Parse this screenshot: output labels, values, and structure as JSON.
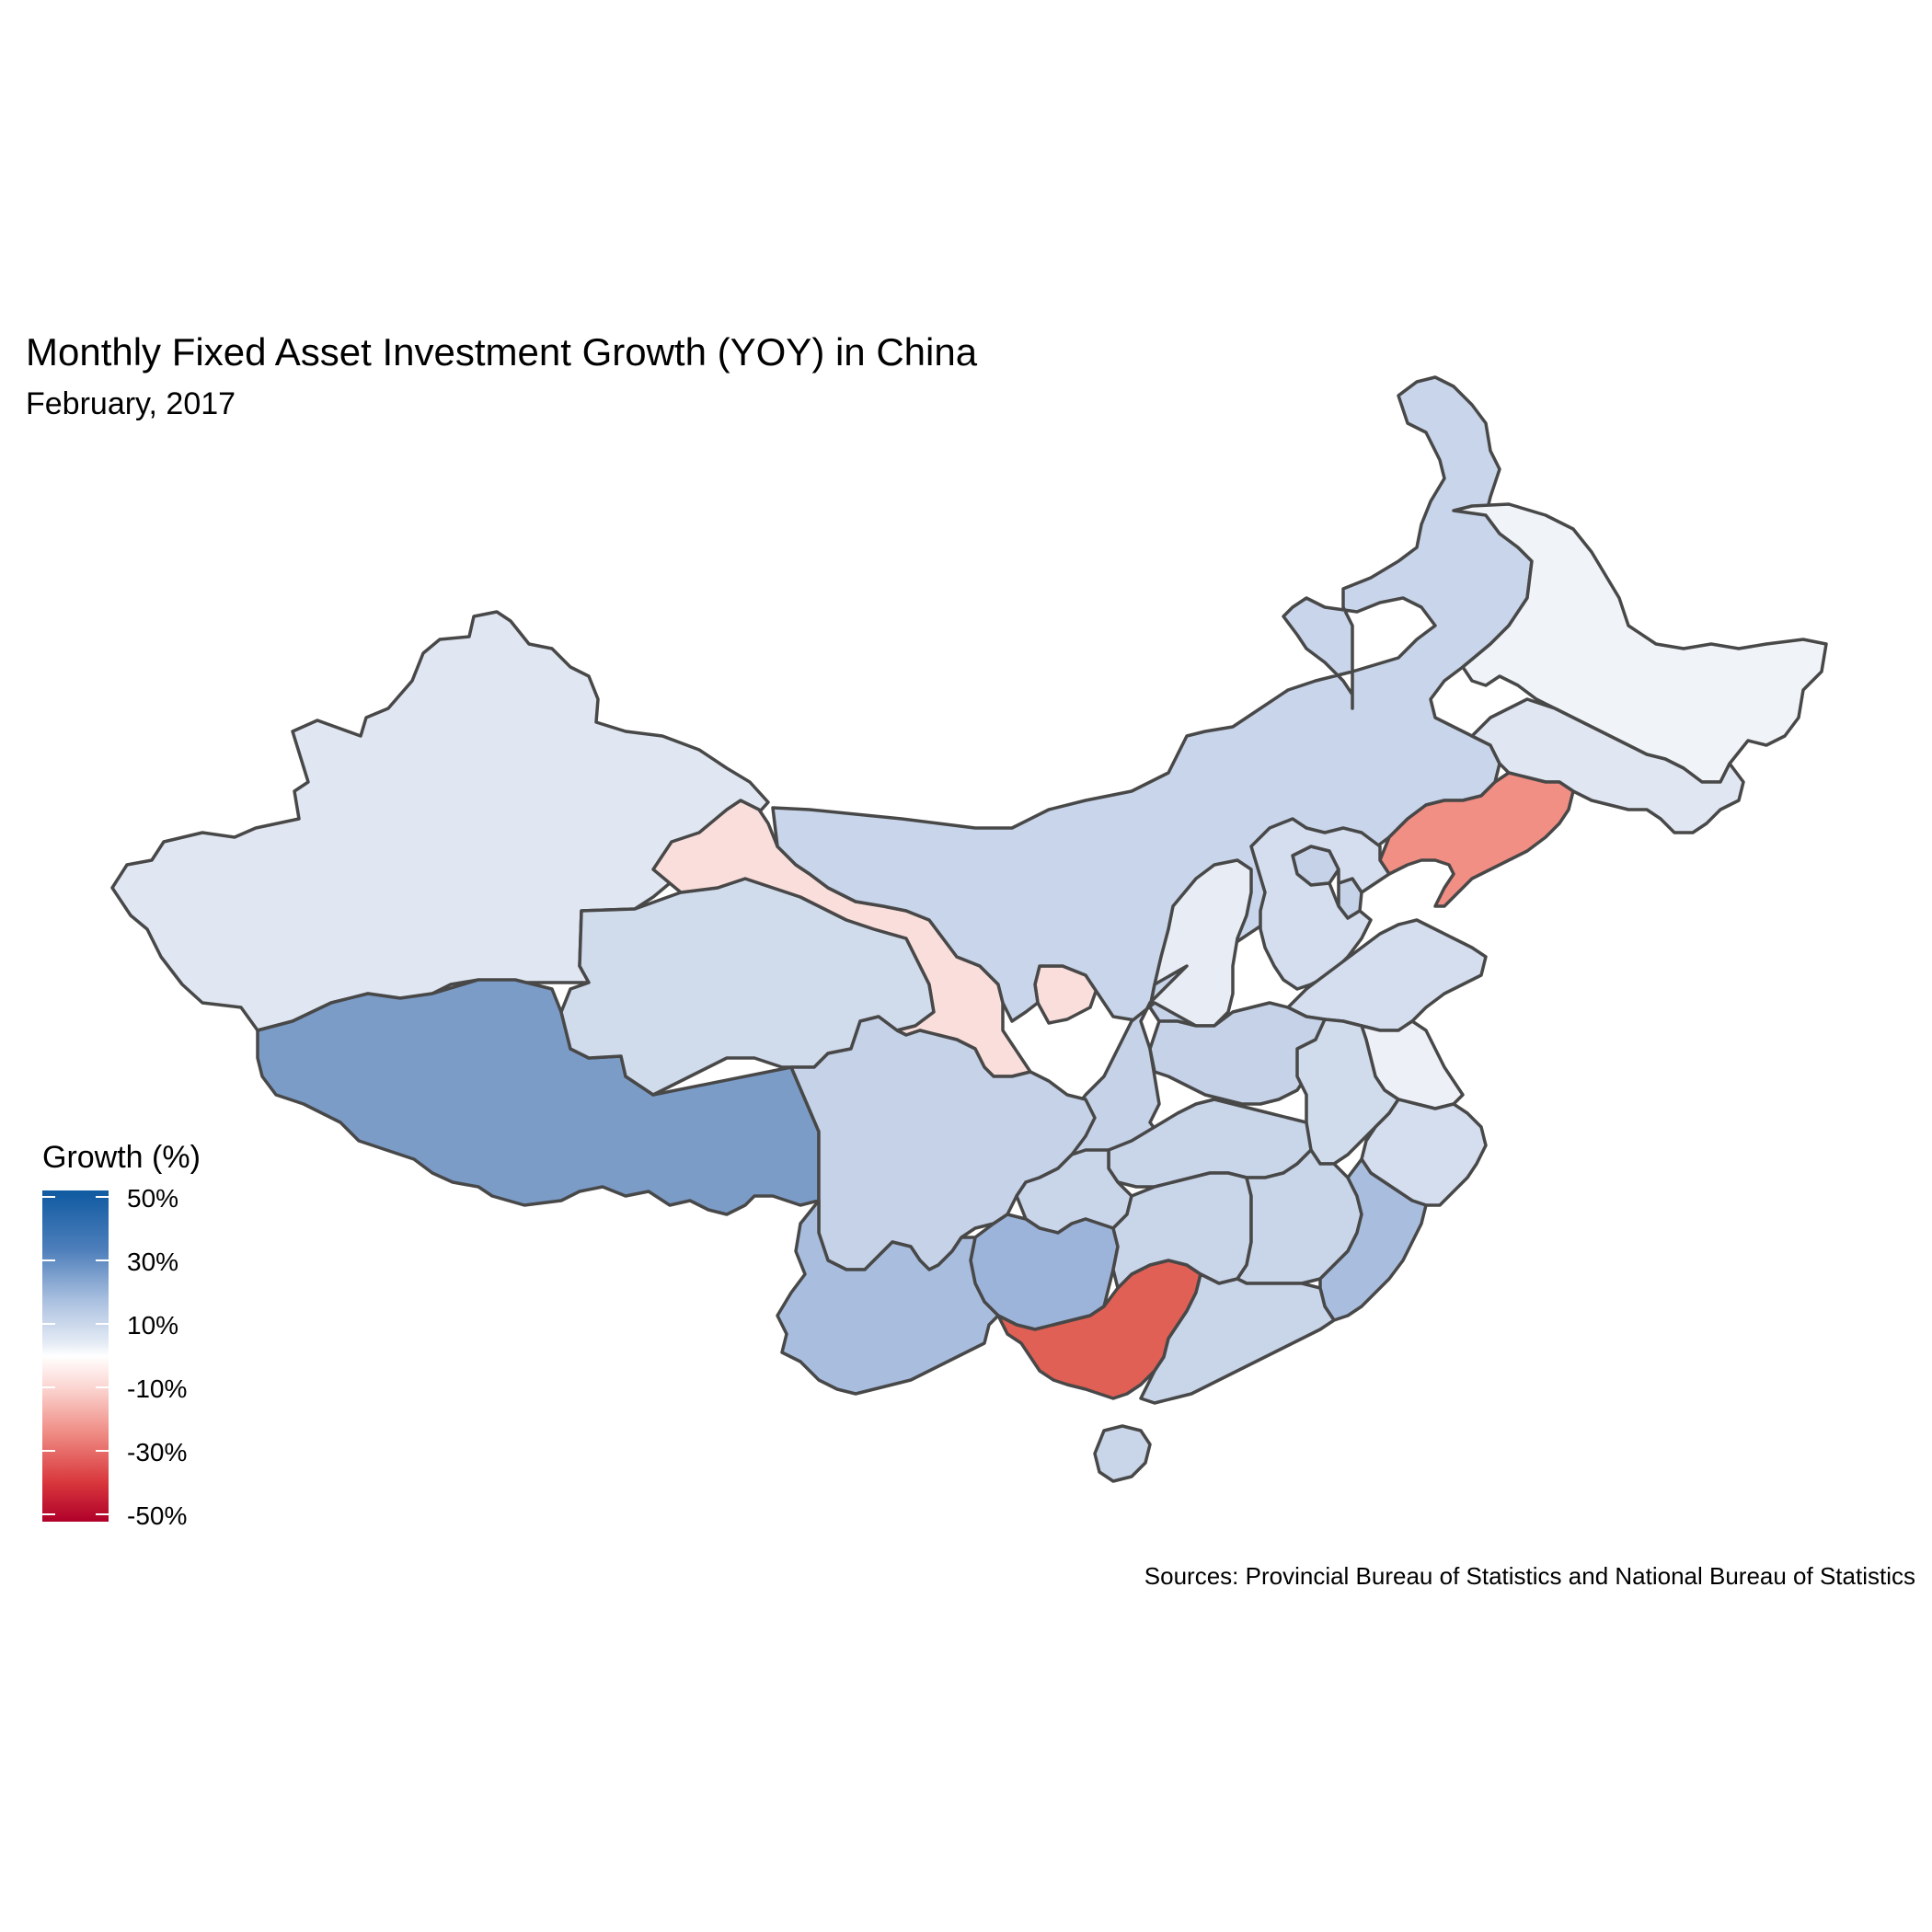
{
  "title": "Monthly Fixed Asset Investment Growth (YOY) in China",
  "subtitle": "February, 2017",
  "caption": "Sources: Provincial Bureau of Statistics and National Bureau of Statistics",
  "legend": {
    "title": "Growth (%)",
    "labels": [
      "50%",
      "30%",
      "10%",
      "-10%",
      "-30%",
      "-50%"
    ],
    "colors": {
      "high": "#0f5aa1",
      "mid": "#ffffff",
      "low": "#b0002a"
    }
  },
  "chart_data": {
    "type": "choropleth",
    "title": "Monthly Fixed Asset Investment Growth (YOY) in China",
    "subtitle": "February, 2017",
    "legend_title": "Growth (%)",
    "scale_range": [
      -50,
      50
    ],
    "legend_position": "left",
    "fill_colors": {
      "xinjiang": "#e1e7f2",
      "tibet": "#7c9cc8",
      "qinghai": "#d0dbec",
      "gansu": "#fadedc",
      "inner-mongolia": "#c8d5ea",
      "heilongjiang": "#f0f4f9",
      "jilin": "#e1e7f2",
      "liaoning": "#f28f84",
      "ningxia": "#fadedc",
      "shaanxi": "#c5d2e8",
      "shanxi": "#e8edf5",
      "hebei": "#d4deee",
      "shandong": "#d4deee",
      "henan": "#c5d2e8",
      "jiangsu": "#edf1f7",
      "anhui": "#d0dbec",
      "hubei": "#c9d5e9",
      "sichuan": "#c5d2e8",
      "chongqing": "#c9d5e9",
      "yunnan": "#a9bedf",
      "guizhou": "#9db4da",
      "guangxi": "#e06055",
      "guangdong": "#c9d5e9",
      "hunan": "#c9d5e9",
      "jiangxi": "#c9d5e9",
      "fujian": "#a9bedf",
      "zhejiang": "#d4deee",
      "hainan": "#c9d5e9",
      "beijing": "#c5d2e8",
      "tianjin": "#c5d2e8"
    }
  }
}
